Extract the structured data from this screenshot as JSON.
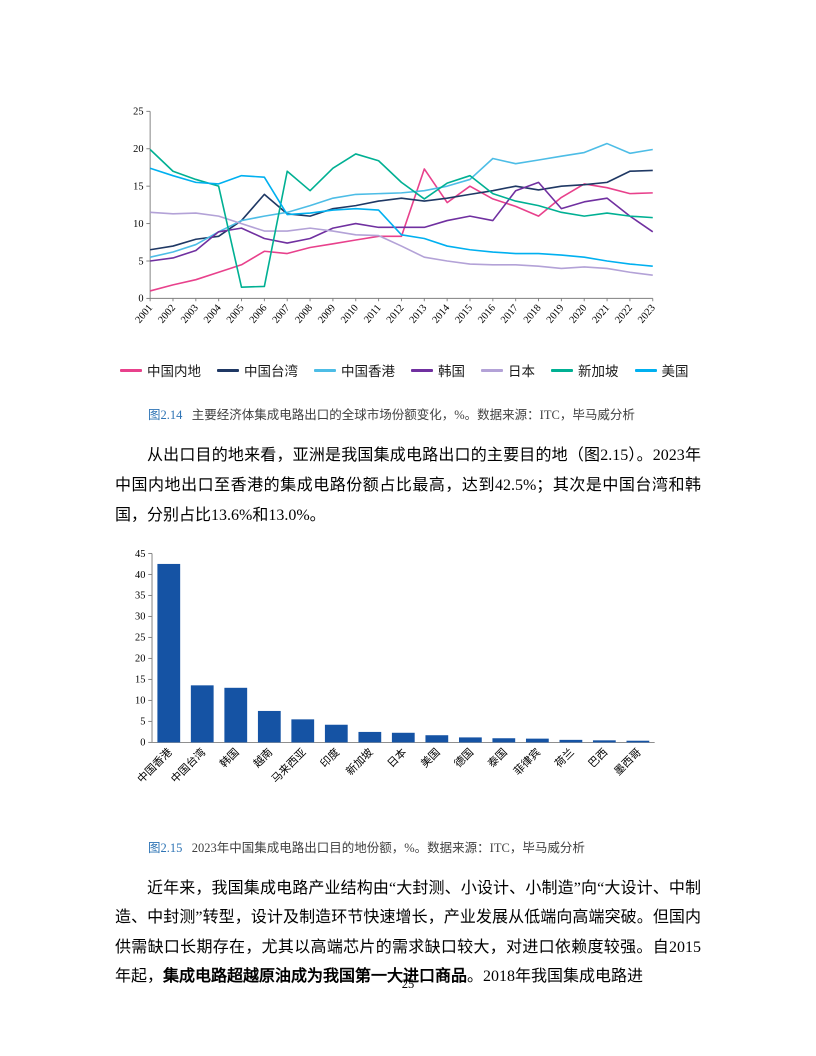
{
  "page_number": "25",
  "figures": {
    "fig214": {
      "label": "图2.14",
      "text": "主要经济体集成电路出口的全球市场份额变化，%。数据来源：ITC，毕马威分析"
    },
    "fig215": {
      "label": "图2.15",
      "text": "2023年中国集成电路出口目的地份额，%。数据来源：ITC，毕马威分析"
    }
  },
  "paragraphs": {
    "p1": "从出口目的地来看，亚洲是我国集成电路出口的主要目的地（图2.15）。2023年中国内地出口至香港的集成电路份额占比最高，达到42.5%；其次是中国台湾和韩国，分别占比13.6%和13.0%。",
    "p2a": "近年来，我国集成电路产业结构由“大封测、小设计、小制造”向“大设计、中制造、中封测”转型，设计及制造环节快速增长，产业发展从低端向高端突破。但国内供需缺口长期存在，尤其以高端芯片的需求缺口较大，对进口依赖度较强。自2015年起，",
    "p2b": "集成电路超越原油成为我国第一大进口商品",
    "p2c": "。2018年我国集成电路进"
  },
  "chart_data": [
    {
      "type": "line",
      "title": "",
      "xlabel": "",
      "ylabel": "",
      "x": [
        2001,
        2002,
        2003,
        2004,
        2005,
        2006,
        2007,
        2008,
        2009,
        2010,
        2011,
        2012,
        2013,
        2014,
        2015,
        2016,
        2017,
        2018,
        2019,
        2020,
        2021,
        2022,
        2023
      ],
      "ylim": [
        0,
        25
      ],
      "ytick_step": 5,
      "grid": false,
      "legend_position": "bottom",
      "series": [
        {
          "name": "中国内地",
          "color": "#e8418c",
          "values": [
            1.0,
            1.8,
            2.5,
            3.5,
            4.5,
            6.3,
            6.0,
            6.8,
            7.3,
            7.8,
            8.3,
            8.3,
            17.3,
            12.8,
            15.0,
            13.3,
            12.3,
            11.0,
            13.5,
            15.3,
            14.8,
            14.0,
            14.1
          ]
        },
        {
          "name": "中国台湾",
          "color": "#1f3864",
          "values": [
            6.5,
            7.0,
            7.9,
            8.3,
            10.4,
            13.9,
            11.3,
            11.0,
            12.0,
            12.4,
            13.0,
            13.4,
            13.0,
            13.4,
            13.9,
            14.4,
            15.0,
            14.5,
            15.0,
            15.2,
            15.5,
            17.0,
            17.1
          ]
        },
        {
          "name": "中国香港",
          "color": "#4dbde6",
          "values": [
            5.5,
            6.2,
            7.2,
            8.9,
            10.4,
            11.0,
            11.5,
            12.4,
            13.4,
            13.9,
            14.0,
            14.1,
            14.4,
            15.0,
            15.9,
            18.7,
            18.0,
            18.5,
            19.0,
            19.5,
            20.7,
            19.4,
            19.9
          ]
        },
        {
          "name": "韩国",
          "color": "#7030a0",
          "values": [
            5.0,
            5.4,
            6.4,
            8.9,
            9.4,
            8.0,
            7.4,
            8.0,
            9.4,
            10.0,
            9.5,
            9.5,
            9.5,
            10.4,
            11.0,
            10.4,
            14.4,
            15.5,
            12.0,
            12.9,
            13.4,
            11.0,
            8.9
          ]
        },
        {
          "name": "日本",
          "color": "#b3a2d7",
          "values": [
            11.5,
            11.3,
            11.4,
            11.0,
            10.0,
            9.0,
            9.0,
            9.4,
            9.0,
            8.5,
            8.4,
            7.0,
            5.5,
            5.0,
            4.6,
            4.5,
            4.5,
            4.3,
            4.0,
            4.2,
            4.0,
            3.5,
            3.1
          ]
        },
        {
          "name": "新加坡",
          "color": "#00b093",
          "values": [
            19.9,
            17.0,
            15.9,
            15.0,
            1.5,
            1.6,
            17.0,
            14.4,
            17.4,
            19.3,
            18.4,
            15.5,
            13.3,
            15.4,
            16.4,
            14.0,
            13.0,
            12.4,
            11.5,
            11.0,
            11.4,
            11.0,
            10.8
          ]
        },
        {
          "name": "美国",
          "color": "#00b0f0",
          "values": [
            17.4,
            16.4,
            15.5,
            15.3,
            16.4,
            16.2,
            11.2,
            11.4,
            11.8,
            12.0,
            11.8,
            8.5,
            8.0,
            7.0,
            6.5,
            6.2,
            6.0,
            6.0,
            5.8,
            5.5,
            5.0,
            4.6,
            4.3
          ]
        }
      ]
    },
    {
      "type": "bar",
      "title": "",
      "xlabel": "",
      "ylabel": "",
      "categories": [
        "中国香港",
        "中国台湾",
        "韩国",
        "越南",
        "马来西亚",
        "印度",
        "新加坡",
        "日本",
        "美国",
        "德国",
        "泰国",
        "菲律宾",
        "荷兰",
        "巴西",
        "墨西哥"
      ],
      "values": [
        42.5,
        13.6,
        13.0,
        7.5,
        5.5,
        4.2,
        2.5,
        2.3,
        1.7,
        1.2,
        1.0,
        0.9,
        0.6,
        0.5,
        0.4
      ],
      "ylim": [
        0,
        45
      ],
      "ytick_step": 5,
      "grid": false,
      "bar_color": "#1553a4"
    }
  ]
}
